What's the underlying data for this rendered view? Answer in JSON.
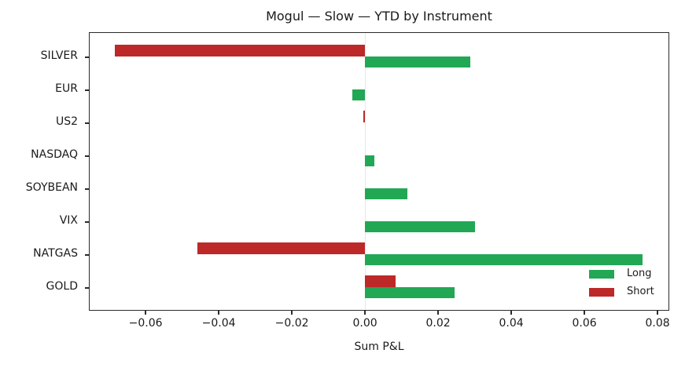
{
  "chart_data": {
    "type": "bar",
    "orientation": "horizontal",
    "title": "Mogul — Slow — YTD by Instrument",
    "xlabel": "Sum P&L",
    "ylabel": "",
    "categories": [
      "SILVER",
      "EUR",
      "US2",
      "NASDAQ",
      "SOYBEAN",
      "VIX",
      "NATGAS",
      "GOLD"
    ],
    "series": [
      {
        "name": "Long",
        "color": "#22a755",
        "values": [
          0.029,
          -0.0034,
          0.0,
          0.0026,
          0.0116,
          0.0303,
          0.0761,
          0.0245
        ]
      },
      {
        "name": "Short",
        "color": "#bd2828",
        "values": [
          -0.0682,
          0.0,
          -0.0003,
          0.0,
          0.0,
          0.0,
          -0.0458,
          0.0084
        ]
      }
    ],
    "xlim": [
      -0.0755,
      0.0832
    ],
    "xticks": [
      -0.06,
      -0.04,
      -0.02,
      0.0,
      0.02,
      0.04,
      0.06,
      0.08
    ],
    "xtick_labels": [
      "−0.06",
      "−0.04",
      "−0.02",
      "0.00",
      "0.02",
      "0.04",
      "0.06",
      "0.08"
    ],
    "grid": false,
    "zero_line": true,
    "legend_position": "lower right"
  },
  "legend": {
    "items": [
      {
        "label": "Long",
        "color": "#22a755"
      },
      {
        "label": "Short",
        "color": "#bd2828"
      }
    ]
  }
}
